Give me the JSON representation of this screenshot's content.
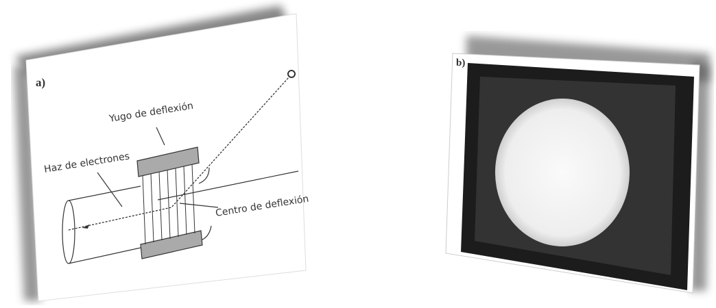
{
  "panels": [
    {
      "label": "a)",
      "annotations": {
        "yoke": "Yugo de deflexión",
        "beam": "Haz de electrones",
        "center": "Centro de deflexión"
      }
    },
    {
      "label": "b)"
    }
  ]
}
